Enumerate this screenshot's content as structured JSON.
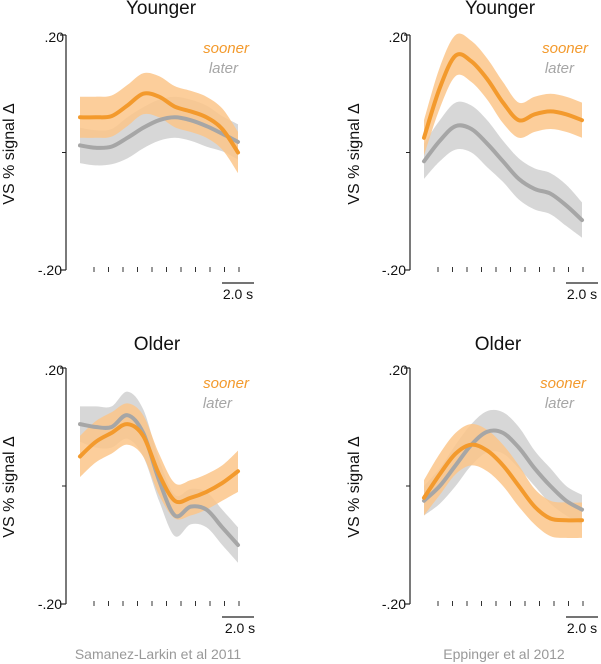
{
  "colors": {
    "sooner": "#f39a2d",
    "sooner_band": "#fbc68a",
    "later": "#a6a6a6",
    "later_band": "#d3d3d3",
    "citation": "#999999"
  },
  "ylabel": "VS % signal Δ",
  "y_tick_labels": [
    ".20",
    "-.20"
  ],
  "scale_bar_label": "2.0 s",
  "legend": {
    "sooner": "sooner",
    "later": "later"
  },
  "citations": [
    "Samanez-Larkin et al 2011",
    "Eppinger et al 2012"
  ],
  "chart_data": [
    {
      "type": "line",
      "title": "Younger",
      "study": "Samanez-Larkin et al 2011",
      "ylabel": "VS % signal Δ",
      "ylim": [
        -0.2,
        0.2
      ],
      "xlim": [
        0,
        10
      ],
      "series": [
        {
          "name": "sooner",
          "x": [
            0,
            1,
            2,
            3,
            4,
            5,
            6,
            7,
            8,
            9,
            10
          ],
          "y": [
            0.06,
            0.06,
            0.062,
            0.08,
            0.1,
            0.095,
            0.078,
            0.07,
            0.06,
            0.04,
            0.0
          ],
          "band": [
            0.035,
            0.035,
            0.035,
            0.035,
            0.035,
            0.035,
            0.035,
            0.035,
            0.035,
            0.035,
            0.035
          ]
        },
        {
          "name": "later",
          "x": [
            0,
            1,
            2,
            3,
            4,
            5,
            6,
            7,
            8,
            9,
            10
          ],
          "y": [
            0.012,
            0.008,
            0.01,
            0.025,
            0.042,
            0.055,
            0.06,
            0.055,
            0.045,
            0.032,
            0.018
          ],
          "band": [
            0.03,
            0.03,
            0.03,
            0.035,
            0.035,
            0.035,
            0.035,
            0.035,
            0.035,
            0.03,
            0.03
          ]
        }
      ]
    },
    {
      "type": "line",
      "title": "Younger",
      "study": "Eppinger et al 2012",
      "ylabel": "VS % signal Δ",
      "ylim": [
        -0.2,
        0.2
      ],
      "xlim": [
        0,
        10
      ],
      "series": [
        {
          "name": "sooner",
          "x": [
            0,
            1,
            2,
            3,
            4,
            5,
            6,
            7,
            8,
            9,
            10
          ],
          "y": [
            0.025,
            0.11,
            0.165,
            0.155,
            0.125,
            0.085,
            0.055,
            0.065,
            0.07,
            0.065,
            0.055
          ],
          "band": [
            0.03,
            0.035,
            0.035,
            0.035,
            0.035,
            0.035,
            0.03,
            0.03,
            0.03,
            0.03,
            0.03
          ]
        },
        {
          "name": "later",
          "x": [
            0,
            1,
            2,
            3,
            4,
            5,
            6,
            7,
            8,
            9,
            10
          ],
          "y": [
            -0.015,
            0.02,
            0.045,
            0.04,
            0.015,
            -0.015,
            -0.045,
            -0.062,
            -0.07,
            -0.09,
            -0.115
          ],
          "band": [
            0.03,
            0.035,
            0.04,
            0.04,
            0.04,
            0.035,
            0.035,
            0.035,
            0.035,
            0.035,
            0.03
          ]
        }
      ]
    },
    {
      "type": "line",
      "title": "Older",
      "study": "Samanez-Larkin et al 2011",
      "ylabel": "VS % signal Δ",
      "ylim": [
        -0.2,
        0.2
      ],
      "xlim": [
        0,
        10
      ],
      "series": [
        {
          "name": "sooner",
          "x": [
            0,
            1,
            2,
            3,
            4,
            5,
            6,
            7,
            8,
            9,
            10
          ],
          "y": [
            0.05,
            0.075,
            0.09,
            0.105,
            0.085,
            0.02,
            -0.025,
            -0.02,
            -0.01,
            0.005,
            0.025
          ],
          "band": [
            0.035,
            0.035,
            0.035,
            0.035,
            0.035,
            0.035,
            0.03,
            0.03,
            0.03,
            0.03,
            0.035
          ]
        },
        {
          "name": "later",
          "x": [
            0,
            1,
            2,
            3,
            4,
            5,
            6,
            7,
            8,
            9,
            10
          ],
          "y": [
            0.105,
            0.1,
            0.1,
            0.12,
            0.09,
            0.01,
            -0.05,
            -0.035,
            -0.04,
            -0.07,
            -0.1
          ],
          "band": [
            0.03,
            0.035,
            0.035,
            0.04,
            0.04,
            0.035,
            0.035,
            0.03,
            0.03,
            0.03,
            0.03
          ]
        }
      ]
    },
    {
      "type": "line",
      "title": "Older",
      "study": "Eppinger et al 2012",
      "ylabel": "VS % signal Δ",
      "ylim": [
        -0.2,
        0.2
      ],
      "xlim": [
        0,
        10
      ],
      "series": [
        {
          "name": "sooner",
          "x": [
            0,
            1,
            2,
            3,
            4,
            5,
            6,
            7,
            8,
            9,
            10
          ],
          "y": [
            -0.02,
            0.02,
            0.055,
            0.07,
            0.06,
            0.035,
            0.0,
            -0.035,
            -0.055,
            -0.058,
            -0.058
          ],
          "band": [
            0.03,
            0.035,
            0.035,
            0.035,
            0.035,
            0.035,
            0.035,
            0.03,
            0.03,
            0.03,
            0.03
          ]
        },
        {
          "name": "later",
          "x": [
            0,
            1,
            2,
            3,
            4,
            5,
            6,
            7,
            8,
            9,
            10
          ],
          "y": [
            -0.025,
            0.0,
            0.035,
            0.07,
            0.092,
            0.09,
            0.065,
            0.03,
            0.0,
            -0.025,
            -0.04
          ],
          "band": [
            0.025,
            0.03,
            0.035,
            0.035,
            0.035,
            0.035,
            0.035,
            0.03,
            0.03,
            0.025,
            0.025
          ]
        }
      ]
    }
  ]
}
